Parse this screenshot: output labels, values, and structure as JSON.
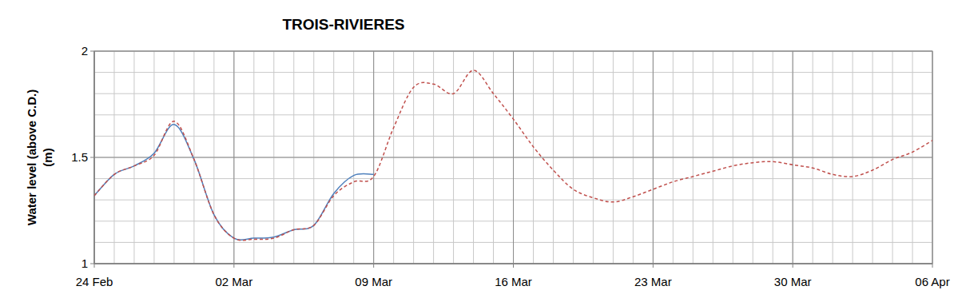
{
  "chart_data": {
    "type": "line",
    "title": "TROIS-RIVIERES",
    "ylabel": "Water level (above C.D.) (m)",
    "x": [
      0,
      1,
      2,
      3,
      4,
      5,
      6,
      7,
      8,
      9,
      10,
      11,
      12,
      13,
      14,
      15,
      16,
      17,
      18,
      19,
      20,
      21,
      22,
      23,
      24,
      25,
      26,
      27,
      28,
      29,
      30,
      31,
      32,
      33,
      34,
      35,
      36,
      37,
      38,
      39,
      40,
      41,
      42
    ],
    "xlim": [
      0,
      42
    ],
    "xticks": [
      {
        "value": 0,
        "label": "24 Feb"
      },
      {
        "value": 7,
        "label": "02 Mar"
      },
      {
        "value": 14,
        "label": "09 Mar"
      },
      {
        "value": 21,
        "label": "16 Mar"
      },
      {
        "value": 28,
        "label": "23 Mar"
      },
      {
        "value": 35,
        "label": "30 Mar"
      },
      {
        "value": 42,
        "label": "06 Apr"
      }
    ],
    "ylim": [
      1,
      2
    ],
    "yticks": [
      1,
      1.5,
      2
    ],
    "grid": true,
    "series": [
      {
        "color": "#4f81bd",
        "line_style": "solid",
        "values": [
          1.32,
          1.42,
          1.46,
          1.52,
          1.655,
          1.49,
          1.23,
          1.12,
          1.12,
          1.125,
          1.16,
          1.18,
          1.33,
          1.415,
          1.42,
          null,
          null,
          null,
          null,
          null,
          null,
          null,
          null,
          null,
          null,
          null,
          null,
          null,
          null,
          null,
          null,
          null,
          null,
          null,
          null,
          null,
          null,
          null,
          null,
          null,
          null,
          null,
          null
        ]
      },
      {
        "color": "#c0504d",
        "line_style": "dashed",
        "values": [
          1.32,
          1.42,
          1.46,
          1.51,
          1.67,
          1.49,
          1.23,
          1.12,
          1.115,
          1.12,
          1.16,
          1.18,
          1.32,
          1.385,
          1.41,
          1.64,
          1.83,
          1.845,
          1.8,
          1.91,
          1.8,
          1.68,
          1.55,
          1.44,
          1.35,
          1.31,
          1.29,
          1.315,
          1.35,
          1.385,
          1.41,
          1.435,
          1.46,
          1.475,
          1.48,
          1.465,
          1.45,
          1.42,
          1.41,
          1.44,
          1.49,
          1.525,
          1.58
        ]
      }
    ]
  }
}
